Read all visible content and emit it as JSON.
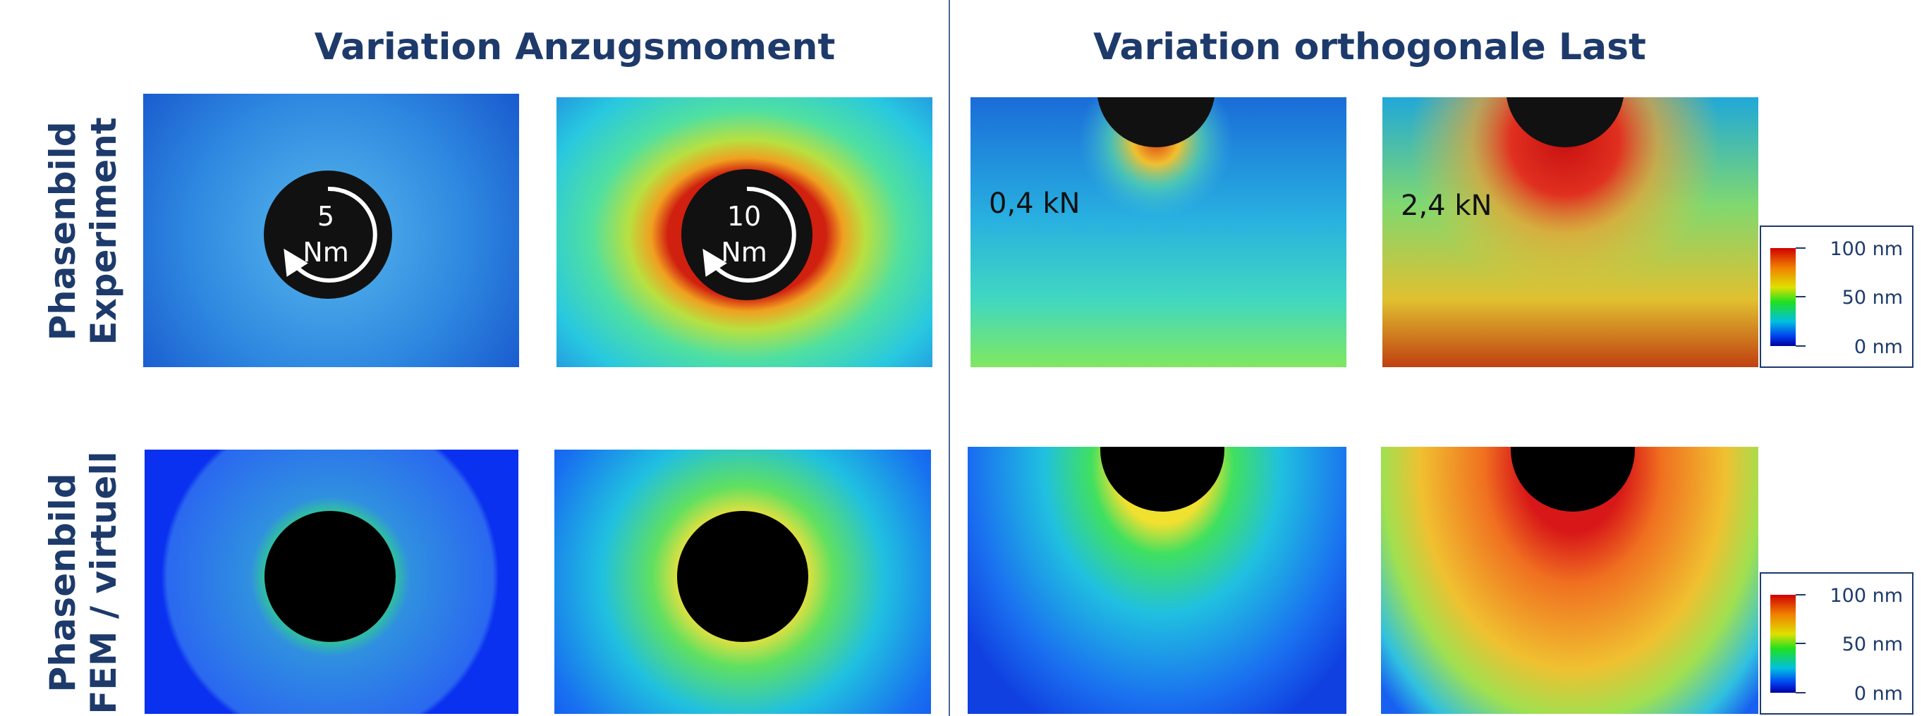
{
  "headers": [
    "Variation Anzugsmoment",
    "Variation orthogonale Last"
  ],
  "rows": [
    {
      "label": [
        "Phasenbild",
        "Experiment"
      ]
    },
    {
      "label": [
        "Phasenbild",
        "FEM / virtuell"
      ]
    }
  ],
  "torque_labels": [
    {
      "value": "5",
      "unit": "Nm"
    },
    {
      "value": "10",
      "unit": "Nm"
    }
  ],
  "load_labels": [
    "0,4 kN",
    "2,4 kN"
  ],
  "colorbars": [
    {
      "ticks": [
        "100 nm",
        "50 nm",
        "0 nm"
      ]
    },
    {
      "ticks": [
        "100 nm",
        "50 nm",
        "0 nm"
      ]
    }
  ]
}
